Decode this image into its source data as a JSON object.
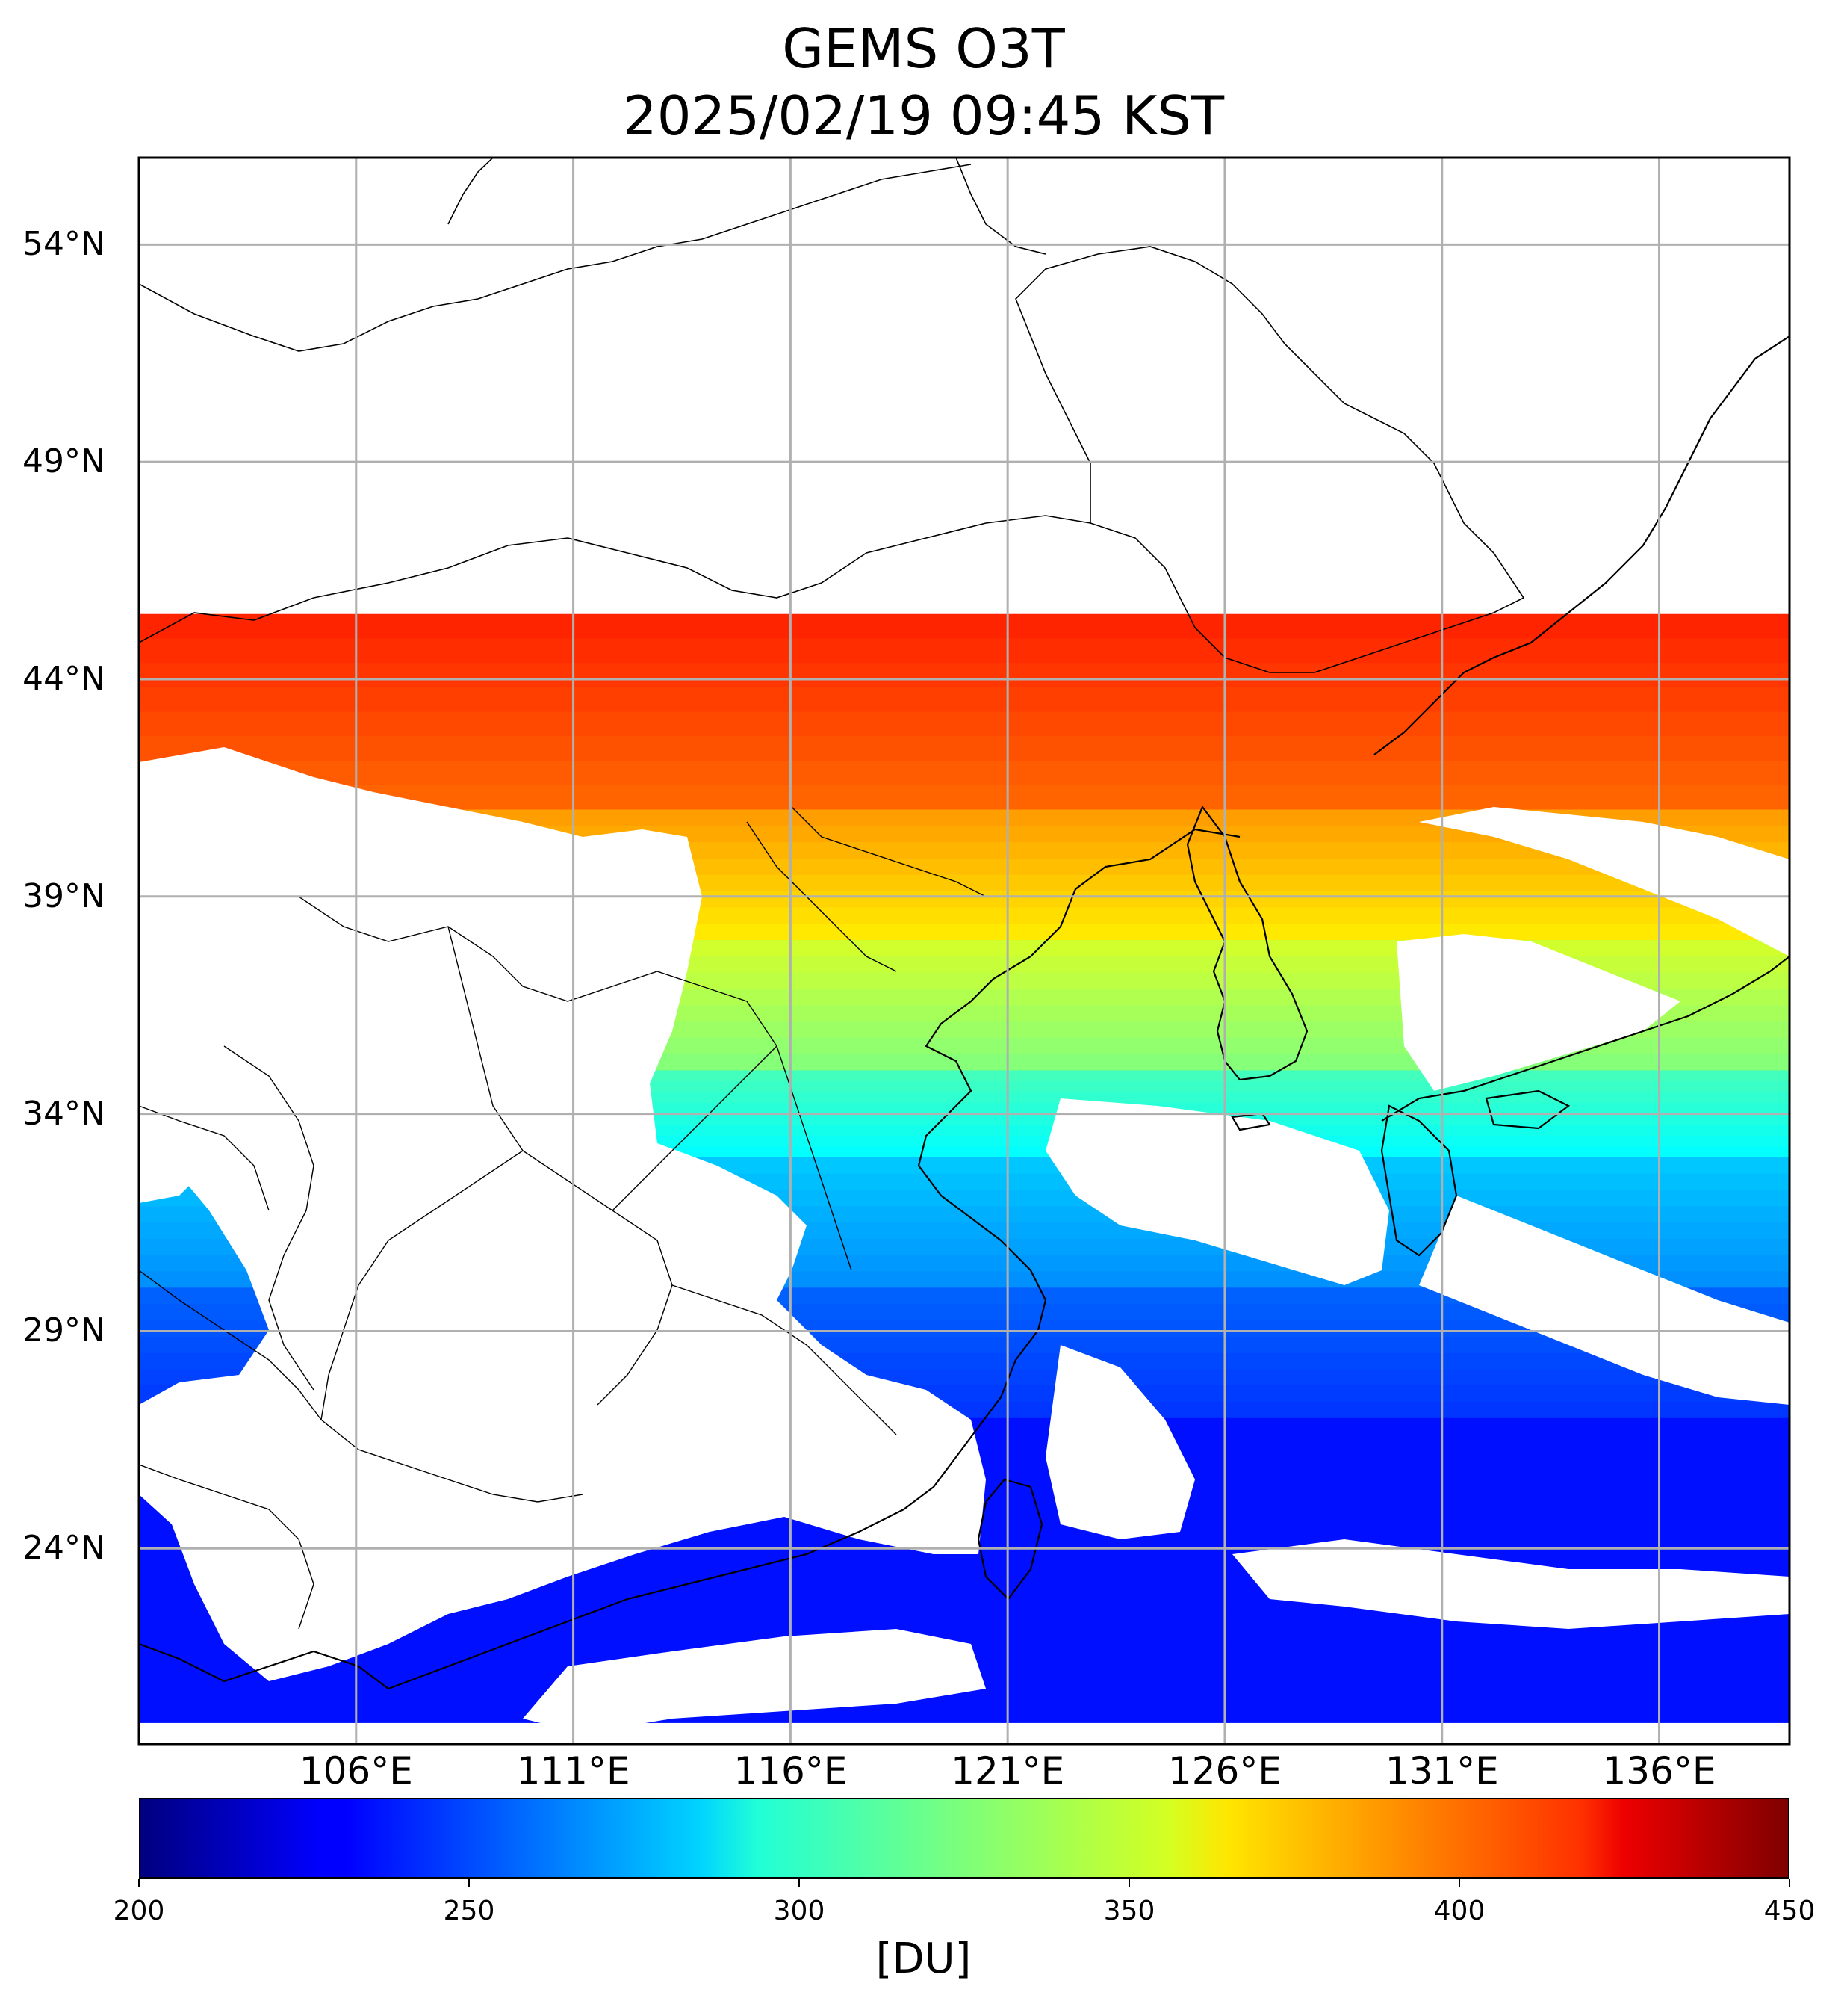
{
  "title": {
    "line1": "GEMS O3T",
    "line2": "2025/02/19 09:45 KST"
  },
  "map": {
    "projection": "plate-carree",
    "lon_range": [
      101,
      139
    ],
    "lat_range": [
      19.5,
      56
    ],
    "lat_ticks": [
      "54°N",
      "49°N",
      "44°N",
      "39°N",
      "34°N",
      "29°N",
      "24°N"
    ],
    "lon_ticks": [
      "106°E",
      "111°E",
      "116°E",
      "121°E",
      "126°E",
      "131°E",
      "136°E"
    ],
    "lat_values": [
      54,
      49,
      44,
      39,
      34,
      29,
      24
    ],
    "lon_values": [
      106,
      111,
      116,
      121,
      126,
      131,
      136
    ],
    "gridlines": true,
    "coastlines_color": "#000000",
    "gridline_color": "#b0b0b0"
  },
  "colorbar": {
    "colormap": "jet",
    "vmin": 200,
    "vmax": 450,
    "ticks": [
      "200",
      "250",
      "300",
      "350",
      "400",
      "450"
    ],
    "tick_values": [
      200,
      250,
      300,
      350,
      400,
      450
    ],
    "label": "[DU]",
    "orientation": "horizontal",
    "placement": "bottom"
  },
  "ozone_field": {
    "unit": "DU",
    "description_bands": [
      {
        "lat_range": [
          41,
          45.5
        ],
        "approx_value": 410
      },
      {
        "lat_range": [
          38,
          41
        ],
        "approx_value": 380
      },
      {
        "lat_range": [
          35,
          38
        ],
        "approx_value": 345
      },
      {
        "lat_range": [
          33,
          35
        ],
        "approx_value": 310
      },
      {
        "lat_range": [
          30,
          33
        ],
        "approx_value": 280
      },
      {
        "lat_range": [
          27,
          30
        ],
        "approx_value": 255
      },
      {
        "lat_range": [
          20,
          27
        ],
        "approx_value": 235
      }
    ]
  }
}
